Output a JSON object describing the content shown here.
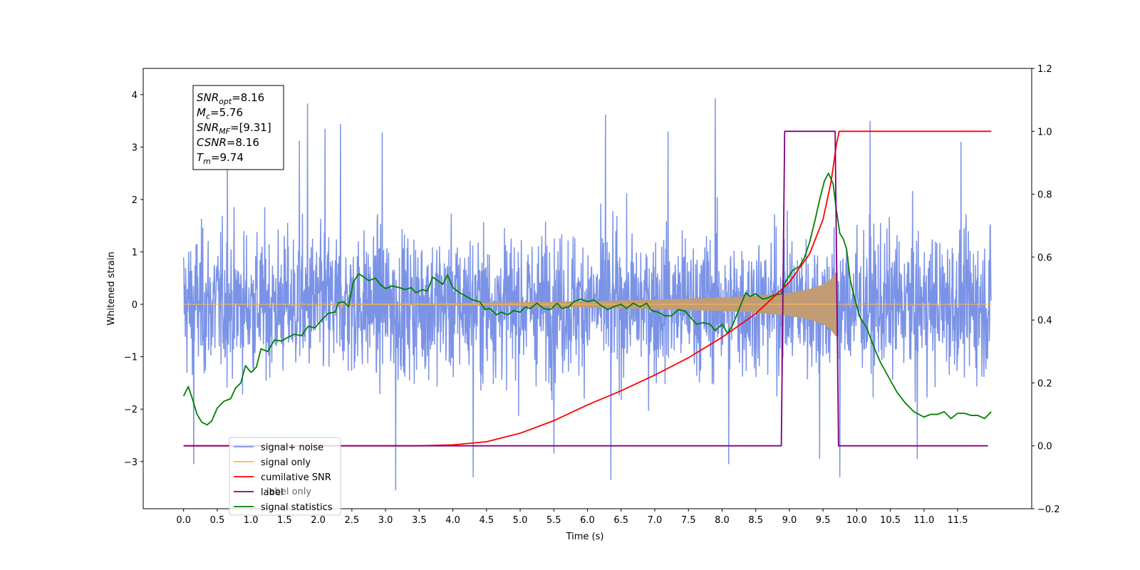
{
  "chart_data": {
    "type": "line",
    "title": "",
    "xlabel": "Time (s)",
    "ylabel_left": "Whitened strain",
    "ylabel_right": "",
    "xlim": [
      -0.6,
      12.6
    ],
    "ylim_left": [
      -3.9,
      4.5
    ],
    "ylim_right": [
      -0.2,
      1.2
    ],
    "grid": false,
    "legend_placement": "lower left",
    "x_ticks": [
      "0.0",
      "0.5",
      "1.0",
      "1.5",
      "2.0",
      "2.5",
      "3.0",
      "3.5",
      "4.0",
      "4.5",
      "5.0",
      "5.5",
      "6.0",
      "6.5",
      "7.0",
      "7.5",
      "8.0",
      "8.5",
      "9.0",
      "9.5",
      "10.0",
      "10.5",
      "11.0",
      "11.5"
    ],
    "y_ticks_left": [
      "4",
      "3",
      "2",
      "1",
      "0",
      "−1",
      "−2",
      "−3"
    ],
    "y_ticks_right": [
      "1.2",
      "1.0",
      "0.8",
      "0.6",
      "0.4",
      "0.2",
      "0.0",
      "−0.2"
    ],
    "info_box": [
      {
        "label": "SNR",
        "sub": "opt",
        "value": "=8.16"
      },
      {
        "label": "M",
        "sub": "c",
        "value": "=5.76"
      },
      {
        "label": "SNR",
        "sub": "MF",
        "value": "=[9.31]"
      },
      {
        "label": "CSNR",
        "sub": "",
        "value": "=8.16"
      },
      {
        "label": "T",
        "sub": "m",
        "value": "=9.74"
      }
    ],
    "series": [
      {
        "name": "signal+ noise",
        "axis": "left",
        "color": "#7b93e6",
        "description_of_values": "white noise with amplitude approx -2.5..2.5, spikes up to 3.9 and down to -3.4, spanning x 0.0 to 12.0",
        "x_range": [
          0.0,
          12.0
        ],
        "y_envelope": [
          -2.6,
          2.6
        ],
        "spike_values": [
          {
            "x": 0.15,
            "y": -3.05
          },
          {
            "x": 1.72,
            "y": 3.12
          },
          {
            "x": 1.84,
            "y": 3.83
          },
          {
            "x": 2.1,
            "y": 3.35
          },
          {
            "x": 2.33,
            "y": 3.44
          },
          {
            "x": 2.95,
            "y": 3.28
          },
          {
            "x": 3.15,
            "y": -3.55
          },
          {
            "x": 4.3,
            "y": -3.3
          },
          {
            "x": 6.27,
            "y": 3.62
          },
          {
            "x": 6.35,
            "y": -3.35
          },
          {
            "x": 7.9,
            "y": 3.93
          },
          {
            "x": 8.1,
            "y": -3.05
          },
          {
            "x": 7.2,
            "y": 3.3
          },
          {
            "x": 9.75,
            "y": -3.3
          },
          {
            "x": 10.2,
            "y": 3.5
          },
          {
            "x": 10.9,
            "y": -2.95
          },
          {
            "x": 11.55,
            "y": 3.1
          },
          {
            "x": 9.45,
            "y": -2.95
          },
          {
            "x": 5.5,
            "y": -2.85
          },
          {
            "x": 0.65,
            "y": 2.95
          }
        ]
      },
      {
        "name": "signal only",
        "axis": "left",
        "color": "#f5b85a",
        "fill_color": "#c19c74",
        "description_of_values": "chirp oscillation whose amplitude grows from ~0 to ~0.6 near x=9.72 then stops",
        "envelope_points": [
          [
            0.0,
            0.005
          ],
          [
            2.0,
            0.01
          ],
          [
            4.0,
            0.02
          ],
          [
            5.0,
            0.04
          ],
          [
            6.0,
            0.06
          ],
          [
            7.0,
            0.09
          ],
          [
            8.0,
            0.13
          ],
          [
            8.5,
            0.16
          ],
          [
            9.0,
            0.22
          ],
          [
            9.3,
            0.29
          ],
          [
            9.5,
            0.38
          ],
          [
            9.6,
            0.46
          ],
          [
            9.68,
            0.6
          ],
          [
            9.72,
            0.62
          ]
        ]
      },
      {
        "name": "cumilative SNR",
        "axis": "right",
        "color": "#ff0000",
        "points": [
          [
            0.0,
            0.0
          ],
          [
            3.0,
            0.0
          ],
          [
            3.5,
            0.0
          ],
          [
            4.0,
            0.003
          ],
          [
            4.5,
            0.013
          ],
          [
            5.0,
            0.04
          ],
          [
            5.5,
            0.08
          ],
          [
            6.0,
            0.13
          ],
          [
            6.5,
            0.175
          ],
          [
            7.0,
            0.225
          ],
          [
            7.5,
            0.28
          ],
          [
            8.0,
            0.345
          ],
          [
            8.5,
            0.42
          ],
          [
            9.0,
            0.52
          ],
          [
            9.3,
            0.61
          ],
          [
            9.5,
            0.72
          ],
          [
            9.62,
            0.84
          ],
          [
            9.7,
            0.96
          ],
          [
            9.74,
            1.0
          ],
          [
            12.0,
            1.0
          ]
        ]
      },
      {
        "name": "label",
        "axis": "right",
        "color": "#800080",
        "points": [
          [
            0.0,
            0.0
          ],
          [
            8.88,
            0.0
          ],
          [
            8.93,
            1.0
          ],
          [
            9.68,
            1.0
          ],
          [
            9.73,
            0.0
          ],
          [
            11.95,
            0.0
          ]
        ]
      },
      {
        "name": "signal statistics",
        "axis": "left",
        "color": "#008000",
        "points": [
          [
            0.0,
            -1.75
          ],
          [
            0.07,
            -1.57
          ],
          [
            0.13,
            -1.8
          ],
          [
            0.2,
            -2.1
          ],
          [
            0.27,
            -2.25
          ],
          [
            0.35,
            -2.3
          ],
          [
            0.42,
            -2.22
          ],
          [
            0.5,
            -1.98
          ],
          [
            0.6,
            -1.85
          ],
          [
            0.7,
            -1.8
          ],
          [
            0.77,
            -1.6
          ],
          [
            0.85,
            -1.5
          ],
          [
            0.92,
            -1.17
          ],
          [
            1.0,
            -1.3
          ],
          [
            1.08,
            -1.2
          ],
          [
            1.15,
            -0.85
          ],
          [
            1.25,
            -0.9
          ],
          [
            1.35,
            -0.68
          ],
          [
            1.45,
            -0.7
          ],
          [
            1.55,
            -0.63
          ],
          [
            1.65,
            -0.57
          ],
          [
            1.75,
            -0.6
          ],
          [
            1.85,
            -0.42
          ],
          [
            1.95,
            -0.45
          ],
          [
            2.05,
            -0.3
          ],
          [
            2.15,
            -0.17
          ],
          [
            2.25,
            -0.15
          ],
          [
            2.3,
            0.03
          ],
          [
            2.38,
            0.05
          ],
          [
            2.45,
            -0.05
          ],
          [
            2.52,
            0.42
          ],
          [
            2.6,
            0.58
          ],
          [
            2.68,
            0.52
          ],
          [
            2.75,
            0.45
          ],
          [
            2.85,
            0.5
          ],
          [
            2.92,
            0.38
          ],
          [
            3.0,
            0.3
          ],
          [
            3.1,
            0.35
          ],
          [
            3.2,
            0.32
          ],
          [
            3.3,
            0.28
          ],
          [
            3.38,
            0.32
          ],
          [
            3.45,
            0.22
          ],
          [
            3.55,
            0.28
          ],
          [
            3.62,
            0.25
          ],
          [
            3.7,
            0.52
          ],
          [
            3.78,
            0.45
          ],
          [
            3.85,
            0.38
          ],
          [
            3.92,
            0.56
          ],
          [
            4.0,
            0.32
          ],
          [
            4.1,
            0.22
          ],
          [
            4.2,
            0.15
          ],
          [
            4.3,
            0.08
          ],
          [
            4.4,
            0.05
          ],
          [
            4.48,
            -0.1
          ],
          [
            4.55,
            -0.08
          ],
          [
            4.65,
            -0.2
          ],
          [
            4.72,
            -0.15
          ],
          [
            4.82,
            -0.2
          ],
          [
            4.9,
            -0.12
          ],
          [
            5.0,
            -0.15
          ],
          [
            5.08,
            -0.05
          ],
          [
            5.15,
            -0.08
          ],
          [
            5.25,
            0.02
          ],
          [
            5.35,
            -0.08
          ],
          [
            5.45,
            -0.1
          ],
          [
            5.55,
            0.02
          ],
          [
            5.62,
            -0.08
          ],
          [
            5.72,
            -0.05
          ],
          [
            5.8,
            0.05
          ],
          [
            5.9,
            0.1
          ],
          [
            6.0,
            0.05
          ],
          [
            6.1,
            0.08
          ],
          [
            6.2,
            -0.02
          ],
          [
            6.3,
            -0.1
          ],
          [
            6.4,
            -0.04
          ],
          [
            6.5,
            0.0
          ],
          [
            6.58,
            -0.08
          ],
          [
            6.68,
            0.02
          ],
          [
            6.78,
            -0.05
          ],
          [
            6.88,
            0.02
          ],
          [
            6.95,
            -0.12
          ],
          [
            7.05,
            -0.15
          ],
          [
            7.15,
            -0.22
          ],
          [
            7.25,
            -0.22
          ],
          [
            7.35,
            -0.1
          ],
          [
            7.45,
            -0.13
          ],
          [
            7.55,
            -0.28
          ],
          [
            7.62,
            -0.38
          ],
          [
            7.72,
            -0.35
          ],
          [
            7.82,
            -0.38
          ],
          [
            7.9,
            -0.5
          ],
          [
            8.0,
            -0.38
          ],
          [
            8.08,
            -0.55
          ],
          [
            8.15,
            -0.42
          ],
          [
            8.25,
            -0.1
          ],
          [
            8.35,
            0.22
          ],
          [
            8.42,
            0.15
          ],
          [
            8.5,
            0.2
          ],
          [
            8.6,
            0.1
          ],
          [
            8.68,
            0.12
          ],
          [
            8.78,
            0.18
          ],
          [
            8.88,
            0.2
          ],
          [
            8.95,
            0.45
          ],
          [
            9.05,
            0.65
          ],
          [
            9.15,
            0.72
          ],
          [
            9.22,
            0.88
          ],
          [
            9.3,
            1.18
          ],
          [
            9.38,
            1.6
          ],
          [
            9.45,
            2.0
          ],
          [
            9.52,
            2.35
          ],
          [
            9.58,
            2.5
          ],
          [
            9.65,
            2.3
          ],
          [
            9.7,
            1.78
          ],
          [
            9.75,
            1.35
          ],
          [
            9.8,
            1.25
          ],
          [
            9.85,
            1.05
          ],
          [
            9.9,
            0.5
          ],
          [
            9.95,
            0.2
          ],
          [
            10.05,
            -0.25
          ],
          [
            10.15,
            -0.45
          ],
          [
            10.25,
            -0.8
          ],
          [
            10.35,
            -1.1
          ],
          [
            10.5,
            -1.45
          ],
          [
            10.6,
            -1.68
          ],
          [
            10.72,
            -1.88
          ],
          [
            10.85,
            -2.05
          ],
          [
            11.0,
            -2.15
          ],
          [
            11.1,
            -2.1
          ],
          [
            11.2,
            -2.1
          ],
          [
            11.3,
            -2.05
          ],
          [
            11.4,
            -2.18
          ],
          [
            11.5,
            -2.08
          ],
          [
            11.6,
            -2.08
          ],
          [
            11.7,
            -2.12
          ],
          [
            11.8,
            -2.12
          ],
          [
            11.9,
            -2.18
          ],
          [
            12.0,
            -2.05
          ]
        ]
      }
    ],
    "legend": [
      {
        "name": "signal+ noise",
        "color": "#7b93e6"
      },
      {
        "name": "signal only",
        "color": "#f5b85a"
      },
      {
        "name": "cumilative SNR",
        "color": "#ff0000"
      },
      {
        "name": "label",
        "color": "#800080"
      },
      {
        "name": "signal statistics",
        "color": "#008000"
      }
    ],
    "legend_overlap_text": "label only"
  }
}
